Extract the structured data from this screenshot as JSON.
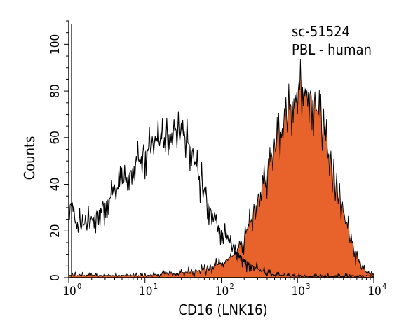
{
  "chart_data": {
    "type": "area",
    "x_scale": "log",
    "xlim": [
      1,
      10000
    ],
    "ylim": [
      0,
      110
    ],
    "xlabel": "CD16 (LNK16)",
    "ylabel": "Counts",
    "annotations": [
      "sc-51524",
      "PBL - human"
    ],
    "x_ticks": [
      {
        "value": 1,
        "base": "10",
        "exp": "0"
      },
      {
        "value": 10,
        "base": "10",
        "exp": "1"
      },
      {
        "value": 100,
        "base": "10",
        "exp": "2"
      },
      {
        "value": 1000,
        "base": "10",
        "exp": "3"
      },
      {
        "value": 10000,
        "base": "10",
        "exp": "4"
      }
    ],
    "y_ticks": [
      0,
      20,
      40,
      60,
      80,
      100
    ],
    "series": [
      {
        "style": "outline",
        "color": "#000000",
        "x": [
          1.0,
          1.1,
          1.25,
          1.5,
          2.0,
          3.0,
          5.0,
          8.0,
          12.0,
          18.0,
          25.0,
          32.0,
          40.0,
          50.0,
          65.0,
          85.0,
          110.0,
          150.0,
          200.0,
          260.0,
          320.0,
          400.0,
          500.0,
          700.0,
          1000.0,
          2000.0,
          5000.0,
          10000.0
        ],
        "y": [
          32,
          30,
          24,
          22,
          25,
          32,
          40,
          50,
          57,
          60,
          63,
          61,
          56,
          45,
          33,
          24,
          18,
          12,
          8,
          5,
          3.5,
          2,
          1.2,
          0.8,
          0.5,
          0.4,
          0.3,
          0.2
        ]
      },
      {
        "style": "filled",
        "color": "#e8632c",
        "x": [
          1.0,
          10.0,
          30.0,
          60.0,
          100.0,
          150.0,
          200.0,
          250.0,
          300.0,
          400.0,
          500.0,
          700.0,
          900.0,
          1000.0,
          1200.0,
          1500.0,
          2000.0,
          2500.0,
          3000.0,
          4000.0,
          5000.0,
          6500.0,
          8000.0,
          10000.0
        ],
        "y": [
          1.0,
          1.0,
          2.0,
          3.5,
          6.0,
          10.0,
          17.0,
          25.0,
          33.0,
          45.0,
          55.0,
          68.0,
          77.0,
          80.0,
          82.0,
          78.0,
          68.0,
          55.0,
          42.0,
          28.0,
          16.0,
          6.0,
          2.0,
          1.0
        ]
      }
    ]
  }
}
